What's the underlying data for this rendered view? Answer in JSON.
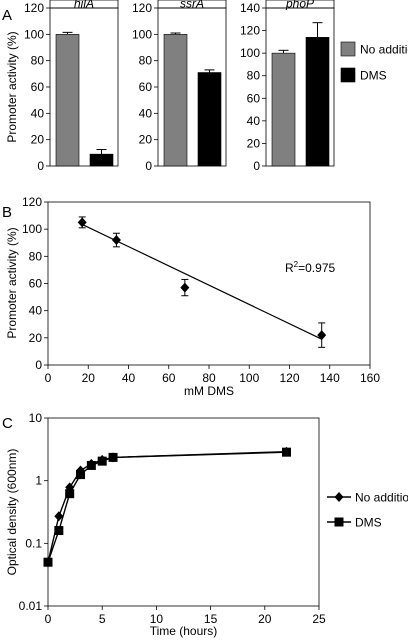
{
  "panels": {
    "a": {
      "letter": "A"
    },
    "b": {
      "letter": "B"
    },
    "c": {
      "letter": "C"
    }
  },
  "chart_data": [
    {
      "type": "bar",
      "panel": "A",
      "ylabel": "Promoter activity (%)",
      "ylim": [
        0,
        120
      ],
      "yticks": [
        0,
        20,
        40,
        60,
        80,
        100,
        120
      ],
      "categories": [
        "No addition",
        "DMS"
      ],
      "colors": {
        "No addition": "#808080",
        "DMS": "#000000"
      },
      "legend": {
        "placement": "right",
        "entries": [
          "No addition",
          "DMS"
        ]
      },
      "subplots": [
        {
          "title": "hilA",
          "ylim": [
            0,
            120
          ],
          "yticks": [
            0,
            20,
            40,
            60,
            80,
            100,
            120
          ],
          "values": [
            100,
            9
          ],
          "errors": [
            1.5,
            3.5
          ]
        },
        {
          "title": "ssrA",
          "ylim": [
            0,
            120
          ],
          "yticks": [
            0,
            20,
            40,
            60,
            80,
            100,
            120
          ],
          "values": [
            100,
            71
          ],
          "errors": [
            1,
            2
          ]
        },
        {
          "title": "phoP",
          "ylim": [
            0,
            140
          ],
          "yticks": [
            0,
            20,
            40,
            60,
            80,
            100,
            120,
            140
          ],
          "values": [
            100,
            114
          ],
          "errors": [
            2.5,
            13
          ]
        }
      ]
    },
    {
      "type": "scatter",
      "panel": "B",
      "xlabel": "mM DMS",
      "ylabel": "Promoter activity (%)",
      "xlim": [
        0,
        160
      ],
      "ylim": [
        0,
        120
      ],
      "xticks": [
        0,
        20,
        40,
        60,
        80,
        100,
        120,
        140,
        160
      ],
      "yticks": [
        0,
        20,
        40,
        60,
        80,
        100,
        120
      ],
      "x": [
        17,
        34,
        68,
        136
      ],
      "y": [
        105,
        92,
        57,
        22
      ],
      "errors": [
        4,
        5,
        6,
        9
      ],
      "trendline": {
        "x": [
          17,
          136
        ],
        "y": [
          103.5,
          19
        ]
      },
      "annotation": {
        "r_label": "R",
        "exponent": "2",
        "value": "=0.975"
      }
    },
    {
      "type": "line",
      "panel": "C",
      "xlabel": "Time (hours)",
      "ylabel": "Optical density (600nm)",
      "xlim": [
        0,
        25
      ],
      "ylim": [
        0.01,
        10
      ],
      "yscale": "log",
      "xticks": [
        0,
        5,
        10,
        15,
        20,
        25
      ],
      "yticks": [
        0.01,
        0.1,
        1,
        10
      ],
      "ytick_labels": [
        "0.01",
        "0.1",
        "1",
        "10"
      ],
      "legend": {
        "placement": "right"
      },
      "series": [
        {
          "name": "No addition",
          "marker": "diamond",
          "x": [
            0,
            1,
            2,
            3,
            4,
            5,
            6,
            22
          ],
          "y": [
            0.05,
            0.27,
            0.78,
            1.45,
            1.85,
            2.15,
            2.35,
            2.9
          ]
        },
        {
          "name": "DMS",
          "marker": "square",
          "x": [
            0,
            1,
            2,
            3,
            4,
            5,
            6,
            22
          ],
          "y": [
            0.05,
            0.16,
            0.62,
            1.25,
            1.75,
            2.05,
            2.35,
            2.85
          ]
        }
      ]
    }
  ]
}
